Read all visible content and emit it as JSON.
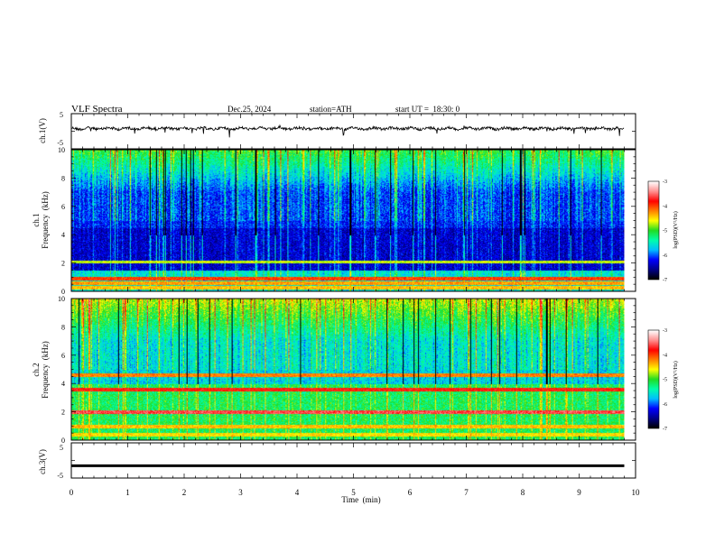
{
  "header": {
    "title": "VLF Spectra",
    "date": "Dec.25, 2024",
    "station": "station=ATH",
    "start": "start UT =  18:30: 0"
  },
  "chart_data": [
    {
      "type": "line",
      "panel": "ch1-waveform",
      "ylabel": "ch.1(V)",
      "ylim": [
        -5,
        5
      ],
      "yticks": [
        "5",
        "-5"
      ],
      "xlim": [
        0,
        10
      ],
      "baseline_volts": 0,
      "data_extent_min": [
        0,
        9.8
      ]
    },
    {
      "type": "heatmap",
      "panel": "ch1-spectrogram",
      "ylabel_line1": "ch.1",
      "ylabel_line2": "Frequency  (kHz)",
      "ylim": [
        0,
        10
      ],
      "yticks": [
        "0",
        "2",
        "4",
        "6",
        "8",
        "10"
      ],
      "xlim": [
        0,
        10
      ],
      "data_extent_min": [
        0,
        9.8
      ],
      "colorbar": {
        "label": "log(PSD)(V²/Hz)",
        "range": [
          -7,
          -3
        ],
        "ticks": [
          "-3",
          "-4",
          "-5",
          "-6",
          "-7"
        ]
      },
      "bands_khz": [
        {
          "center": 2.1,
          "level": -4.7
        },
        {
          "center": 0.9,
          "level": -4.0
        },
        {
          "center": 0.6,
          "level": -4.3
        },
        {
          "center": 0.3,
          "level": -4.4
        }
      ]
    },
    {
      "type": "heatmap",
      "panel": "ch2-spectrogram",
      "ylabel_line1": "ch.2",
      "ylabel_line2": "Frequency  (kHz)",
      "ylim": [
        0,
        10
      ],
      "yticks": [
        "0",
        "2",
        "4",
        "6",
        "8",
        "10"
      ],
      "xlim": [
        0,
        10
      ],
      "data_extent_min": [
        0,
        9.8
      ],
      "colorbar": {
        "label": "log(PSD)(V²/Hz)",
        "range": [
          -7,
          -3
        ],
        "ticks": [
          "-3",
          "-4",
          "-5",
          "-6",
          "-7"
        ]
      },
      "bands_khz": [
        {
          "center": 4.6,
          "level": -4.2
        },
        {
          "center": 3.6,
          "level": -3.8
        },
        {
          "center": 2.0,
          "level": -3.6
        },
        {
          "center": 1.0,
          "level": -4.4
        },
        {
          "center": 0.4,
          "level": -4.5
        }
      ]
    },
    {
      "type": "line",
      "panel": "ch3-waveform",
      "ylabel": "ch.3(V)",
      "ylim": [
        -5,
        5
      ],
      "yticks": [
        "5",
        "-5"
      ],
      "xlim": [
        0,
        10
      ],
      "xlabel": "Time  (min)",
      "xticks": [
        "0",
        "1",
        "2",
        "3",
        "4",
        "5",
        "6",
        "7",
        "8",
        "9",
        "10"
      ],
      "level_volts": -1.5,
      "data_extent_min": [
        0,
        9.8
      ]
    }
  ],
  "colors": {
    "scale": [
      "#000000",
      "#00008b",
      "#0000ff",
      "#00bfff",
      "#00ffaa",
      "#22dd22",
      "#ffff00",
      "#ff8000",
      "#ff0000",
      "#ff9090",
      "#ffffff"
    ]
  }
}
